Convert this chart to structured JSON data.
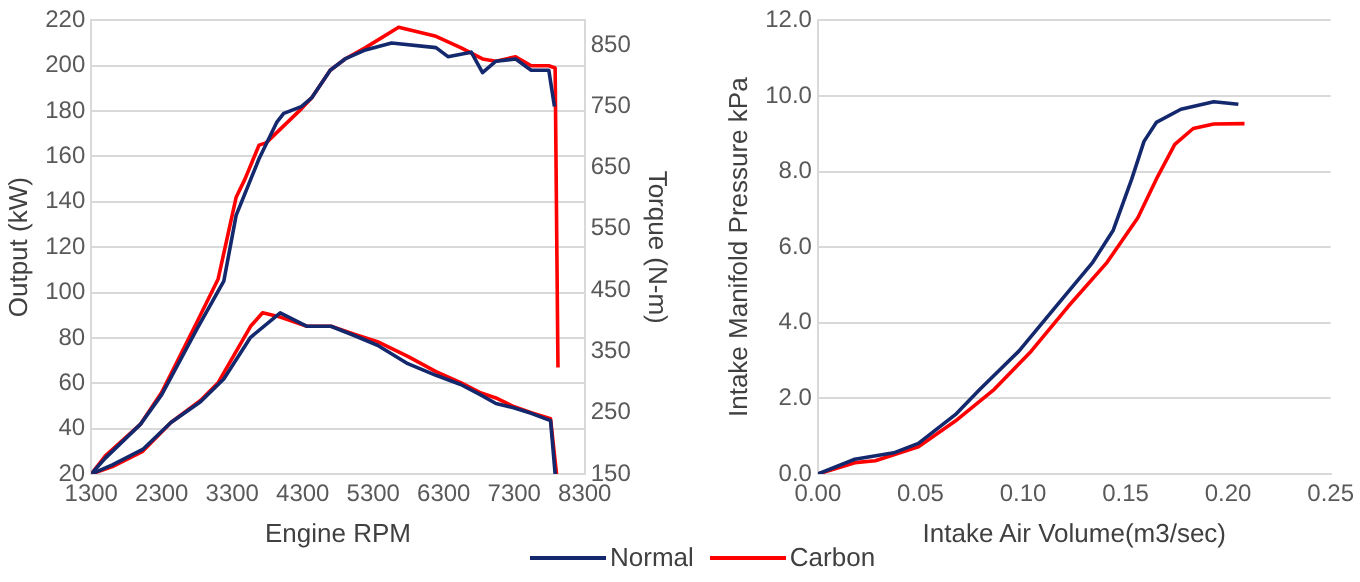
{
  "chart_data": [
    {
      "type": "line",
      "xlabel": "Engine RPM",
      "ylabel": "Output (kW)",
      "y2label": "Torque (N-m)",
      "xlim": [
        1300,
        8300
      ],
      "xticks": [
        1300,
        2300,
        3300,
        4300,
        5300,
        6300,
        7300,
        8300
      ],
      "ylim": [
        20,
        220
      ],
      "yticks": [
        20,
        40,
        60,
        80,
        100,
        120,
        140,
        160,
        180,
        200,
        220
      ],
      "y2lim": [
        150,
        890
      ],
      "y2ticks": [
        150,
        250,
        350,
        450,
        550,
        650,
        750,
        850
      ],
      "grid": "y",
      "legend": "bottom right",
      "series": [
        {
          "name": "Normal",
          "color": "#14286e",
          "x": [
            1300,
            1500,
            2000,
            2300,
            2800,
            3180,
            3355,
            3680,
            3930,
            4030,
            4280,
            4430,
            4690,
            4900,
            5190,
            5560,
            6190,
            6360,
            6690,
            6850,
            7040,
            7320,
            7540,
            7790,
            7870
          ],
          "values": [
            20,
            27,
            42,
            55,
            84,
            105,
            134,
            159,
            175,
            179,
            182,
            186,
            198,
            203,
            207,
            210,
            208,
            204,
            206,
            197,
            202,
            203,
            198,
            198,
            182
          ]
        },
        {
          "name": "Carbon",
          "color": "#ff0000",
          "x": [
            1300,
            1500,
            2000,
            2300,
            2800,
            3100,
            3355,
            3480,
            3680,
            3780,
            4280,
            4430,
            4690,
            4900,
            5190,
            5660,
            6190,
            6540,
            6850,
            7040,
            7320,
            7540,
            7790,
            7880,
            7920
          ],
          "values": [
            20,
            28,
            42,
            56,
            87,
            106,
            142,
            150,
            165,
            166,
            181,
            186,
            198,
            203,
            208,
            217,
            213,
            208,
            203,
            202,
            204,
            200,
            200,
            199,
            67
          ]
        },
        {
          "color": "#14286e",
          "axis": "y2",
          "x": [
            1300,
            1600,
            2030,
            2430,
            2850,
            3180,
            3560,
            3980,
            4360,
            4700,
            5030,
            5360,
            5790,
            6190,
            6540,
            6810,
            7040,
            7290,
            7540,
            7815,
            7880
          ],
          "values": [
            150,
            165,
            190,
            234,
            268,
            305,
            373,
            413,
            391,
            391,
            376,
            360,
            330,
            311,
            296,
            280,
            265,
            258,
            249,
            237,
            150
          ]
        },
        {
          "color": "#ff0000",
          "axis": "y2",
          "x": [
            1300,
            1600,
            2030,
            2430,
            2850,
            3100,
            3180,
            3560,
            3730,
            3980,
            4360,
            4700,
            5030,
            5360,
            5790,
            6190,
            6540,
            6810,
            7040,
            7290,
            7540,
            7815,
            7900
          ],
          "values": [
            150,
            162,
            187,
            234,
            270,
            299,
            315,
            391,
            413,
            406,
            391,
            391,
            378,
            366,
            342,
            317,
            299,
            283,
            274,
            260,
            250,
            240,
            150
          ]
        }
      ]
    },
    {
      "type": "line",
      "xlabel": "Intake Air Volume(m3/sec)",
      "ylabel": "Intake Manifold Pressure kPa",
      "xlim": [
        0,
        0.25
      ],
      "xticks": [
        {
          "value": 0,
          "label": "0.00"
        },
        0.05,
        {
          "value": 0.1,
          "label": "0.10"
        },
        0.15,
        {
          "value": 0.2,
          "label": "0.20"
        },
        0.25
      ],
      "ylim": [
        0,
        12
      ],
      "yticks": [
        {
          "value": 0,
          "label": "0.0"
        },
        {
          "value": 2,
          "label": "2.0"
        },
        {
          "value": 4,
          "label": "4.0"
        },
        {
          "value": 6,
          "label": "6.0"
        },
        {
          "value": 8,
          "label": "8.0"
        },
        {
          "value": 10,
          "label": "10.0"
        },
        {
          "value": 12,
          "label": "12.0"
        }
      ],
      "grid": "y",
      "legend": "bottom left",
      "series": [
        {
          "name": "Normal",
          "color": "#14286e",
          "x": [
            0,
            0.018,
            0.037,
            0.049,
            0.067,
            0.079,
            0.098,
            0.116,
            0.134,
            0.144,
            0.153,
            0.159,
            0.165,
            0.177,
            0.193,
            0.205
          ],
          "values": [
            0,
            0.39,
            0.56,
            0.81,
            1.57,
            2.24,
            3.25,
            4.43,
            5.6,
            6.45,
            7.8,
            8.8,
            9.3,
            9.65,
            9.85,
            9.78
          ]
        },
        {
          "name": "Carbon",
          "color": "#ff0000",
          "x": [
            0,
            0.018,
            0.028,
            0.049,
            0.067,
            0.086,
            0.104,
            0.122,
            0.141,
            0.156,
            0.165,
            0.174,
            0.183,
            0.193,
            0.208
          ],
          "values": [
            0,
            0.3,
            0.35,
            0.72,
            1.4,
            2.24,
            3.25,
            4.43,
            5.6,
            6.78,
            7.8,
            8.72,
            9.14,
            9.26,
            9.27
          ]
        }
      ]
    }
  ]
}
